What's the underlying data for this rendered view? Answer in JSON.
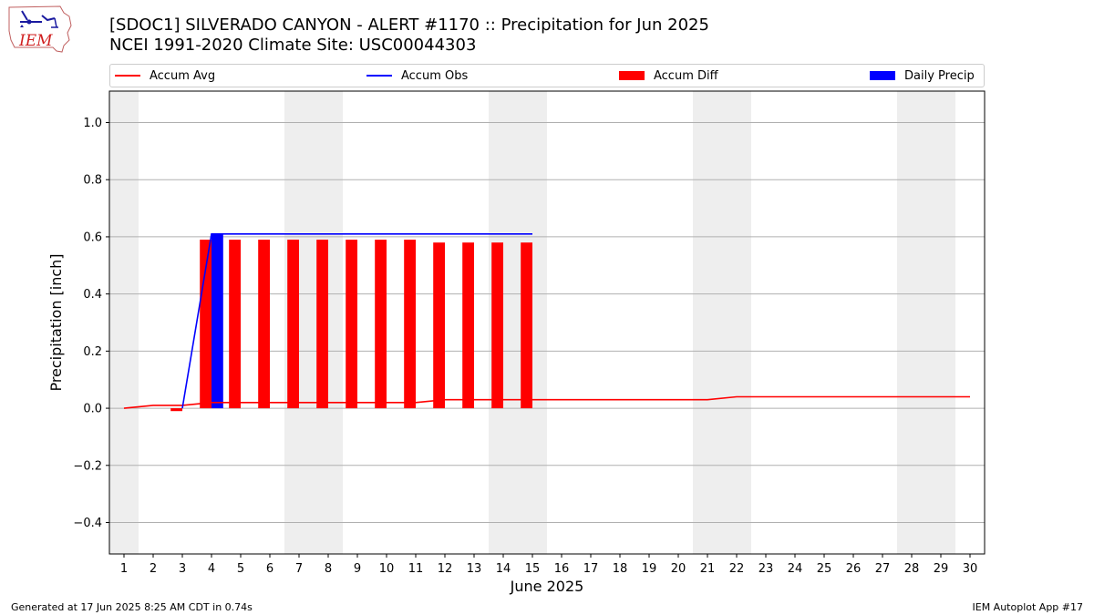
{
  "header": {
    "title_line1": "[SDOC1] SILVERADO CANYON - ALERT #1170 :: Precipitation for Jun 2025",
    "title_line2": "NCEI 1991-2020 Climate Site: USC00044303",
    "logo_text": "IEM"
  },
  "legend": {
    "items": [
      {
        "label": "Accum Avg",
        "kind": "line",
        "color": "#ff0000"
      },
      {
        "label": "Accum Obs",
        "kind": "line",
        "color": "#0000ff"
      },
      {
        "label": "Accum Diff",
        "kind": "bar",
        "color": "#ff0000"
      },
      {
        "label": "Daily Precip",
        "kind": "bar",
        "color": "#0000ff"
      }
    ]
  },
  "footer": {
    "left": "Generated at 17 Jun 2025 8:25 AM CDT in 0.74s",
    "right": "IEM Autoplot App #17"
  },
  "chart_data": {
    "type": "bar",
    "xlabel": "June 2025",
    "ylabel": "Precipitation [inch]",
    "xlim": [
      0.5,
      30.5
    ],
    "ylim": [
      -0.51,
      1.11
    ],
    "y_ticks": [
      -0.4,
      -0.2,
      0.0,
      0.2,
      0.4,
      0.6,
      0.8,
      1.0
    ],
    "y_tick_labels": [
      "−0.4",
      "−0.2",
      "0.0",
      "0.2",
      "0.4",
      "0.6",
      "0.8",
      "1.0"
    ],
    "x_ticks": [
      1,
      2,
      3,
      4,
      5,
      6,
      7,
      8,
      9,
      10,
      11,
      12,
      13,
      14,
      15,
      16,
      17,
      18,
      19,
      20,
      21,
      22,
      23,
      24,
      25,
      26,
      27,
      28,
      29,
      30
    ],
    "x_tick_labels": [
      "1",
      "2",
      "3",
      "4",
      "5",
      "6",
      "7",
      "8",
      "9",
      "10",
      "11",
      "12",
      "13",
      "14",
      "15",
      "16",
      "17",
      "18",
      "19",
      "20",
      "21",
      "22",
      "23",
      "24",
      "25",
      "26",
      "27",
      "28",
      "29",
      "30"
    ],
    "grid": "horizontal",
    "legend_position": "top",
    "weekend_shading": [
      [
        0.5,
        1.5
      ],
      [
        6.5,
        8.5
      ],
      [
        13.5,
        15.5
      ],
      [
        20.5,
        22.5
      ],
      [
        27.5,
        29.5
      ]
    ],
    "shade_color": "#eeeeee",
    "series": [
      {
        "name": "Accum Avg",
        "kind": "line",
        "color": "#ff0000",
        "x": [
          1,
          2,
          3,
          4,
          5,
          6,
          7,
          8,
          9,
          10,
          11,
          12,
          13,
          14,
          15,
          16,
          17,
          18,
          19,
          20,
          21,
          22,
          23,
          24,
          25,
          26,
          27,
          28,
          29,
          30
        ],
        "values": [
          0.0,
          0.01,
          0.01,
          0.02,
          0.02,
          0.02,
          0.02,
          0.02,
          0.02,
          0.02,
          0.02,
          0.03,
          0.03,
          0.03,
          0.03,
          0.03,
          0.03,
          0.03,
          0.03,
          0.03,
          0.03,
          0.04,
          0.04,
          0.04,
          0.04,
          0.04,
          0.04,
          0.04,
          0.04,
          0.04
        ]
      },
      {
        "name": "Accum Obs",
        "kind": "line",
        "color": "#0000ff",
        "x": [
          3,
          4,
          5,
          6,
          7,
          8,
          9,
          10,
          11,
          12,
          13,
          14,
          15
        ],
        "values": [
          0.0,
          0.61,
          0.61,
          0.61,
          0.61,
          0.61,
          0.61,
          0.61,
          0.61,
          0.61,
          0.61,
          0.61,
          0.61
        ]
      },
      {
        "name": "Accum Diff",
        "kind": "bar",
        "color": "#ff0000",
        "x": [
          3,
          4,
          5,
          6,
          7,
          8,
          9,
          10,
          11,
          12,
          13,
          14,
          15
        ],
        "values": [
          -0.01,
          0.59,
          0.59,
          0.59,
          0.59,
          0.59,
          0.59,
          0.59,
          0.59,
          0.58,
          0.58,
          0.58,
          0.58
        ]
      },
      {
        "name": "Daily Precip",
        "kind": "bar",
        "color": "#0000ff",
        "x": [
          4
        ],
        "values": [
          0.61
        ]
      }
    ]
  }
}
